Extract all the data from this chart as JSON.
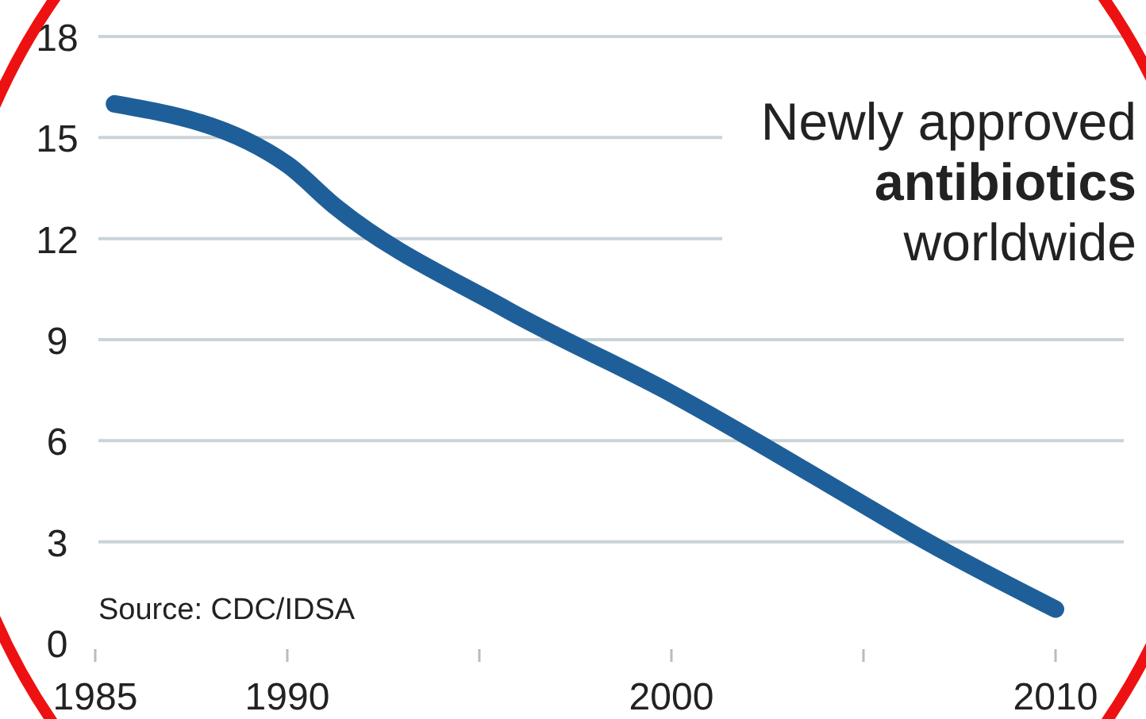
{
  "chart_data": {
    "type": "line",
    "title": "Newly approved\nantibiotics\nworldwide",
    "x": [
      1985.5,
      1990,
      1991.2,
      1995.7,
      2000,
      2005,
      2006.5,
      2010
    ],
    "series": [
      {
        "color": "#1f5f99",
        "values": [
          16,
          14.2,
          13,
          9.9,
          7.4,
          4.1,
          3.1,
          1
        ]
      }
    ],
    "xlim": [
      1985,
      2010
    ],
    "xticks": [
      1985,
      1990,
      {
        "value": 1995,
        "label": null
      },
      2000,
      {
        "value": 2005,
        "label": null
      },
      2010
    ],
    "ylim": [
      0,
      18
    ],
    "yticks": [
      0,
      3,
      6,
      9,
      12,
      15,
      18
    ],
    "grid": "y",
    "marker": "none",
    "line_style": "solid",
    "annotations": [
      "Source: CDC/IDSA"
    ]
  }
}
